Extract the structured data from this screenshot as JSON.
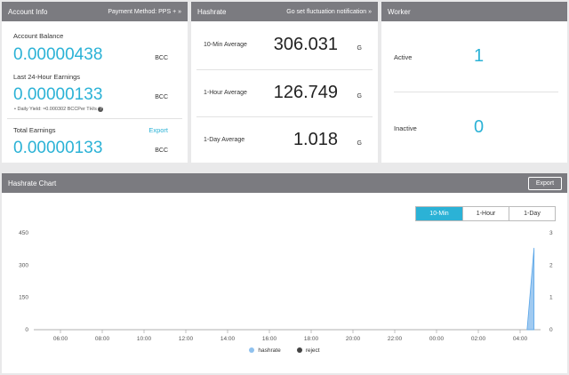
{
  "account": {
    "title": "Account Info",
    "payment_link": "Payment Method: PPS + »",
    "balance_label": "Account Balance",
    "balance_value": "0.00000438",
    "balance_unit": "BCC",
    "earn24_label": "Last 24-Hour Earnings",
    "earn24_value": "0.00000133",
    "earn24_unit": "BCC",
    "daily_yield": "Daily Yield: ≈0.000302 BCCPer TH/s",
    "total_label": "Total Earnings",
    "export_label": "Export",
    "total_value": "0.00000133",
    "total_unit": "BCC"
  },
  "hashrate": {
    "title": "Hashrate",
    "link": "Go set fluctuation notification »",
    "rows": [
      {
        "label": "10-Min Average",
        "value": "306.031",
        "unit": "G"
      },
      {
        "label": "1-Hour Average",
        "value": "126.749",
        "unit": "G"
      },
      {
        "label": "1-Day Average",
        "value": "1.018",
        "unit": "G"
      }
    ]
  },
  "worker": {
    "title": "Worker",
    "active_label": "Active",
    "active_value": "1",
    "inactive_label": "Inactive",
    "inactive_value": "0"
  },
  "chart_panel": {
    "title": "Hashrate Chart",
    "export_label": "Export",
    "tabs": [
      "10-Min",
      "1-Hour",
      "1-Day"
    ],
    "active_tab": "10-Min"
  },
  "colors": {
    "accent": "#2bb2d6",
    "header": "#7b7b80",
    "hashrate_series": "#8fc1ee",
    "reject_series": "#444444"
  },
  "chart_data": {
    "type": "area",
    "x": [
      "06:00",
      "08:00",
      "10:00",
      "12:00",
      "14:00",
      "16:00",
      "18:00",
      "20:00",
      "22:00",
      "00:00",
      "02:00",
      "04:00"
    ],
    "yticks_left": [
      0,
      150,
      300,
      450
    ],
    "yticks_right": [
      0,
      1,
      2,
      3
    ],
    "ylim": [
      0,
      450
    ],
    "y2lim": [
      0,
      3
    ],
    "series": [
      {
        "name": "hashrate",
        "color": "#8fc1ee",
        "points": [
          {
            "x": "04:20",
            "y": 0
          },
          {
            "x": "04:40",
            "y": 380
          }
        ]
      },
      {
        "name": "reject",
        "color": "#444444",
        "points": []
      }
    ],
    "legend": "bottom-center"
  }
}
